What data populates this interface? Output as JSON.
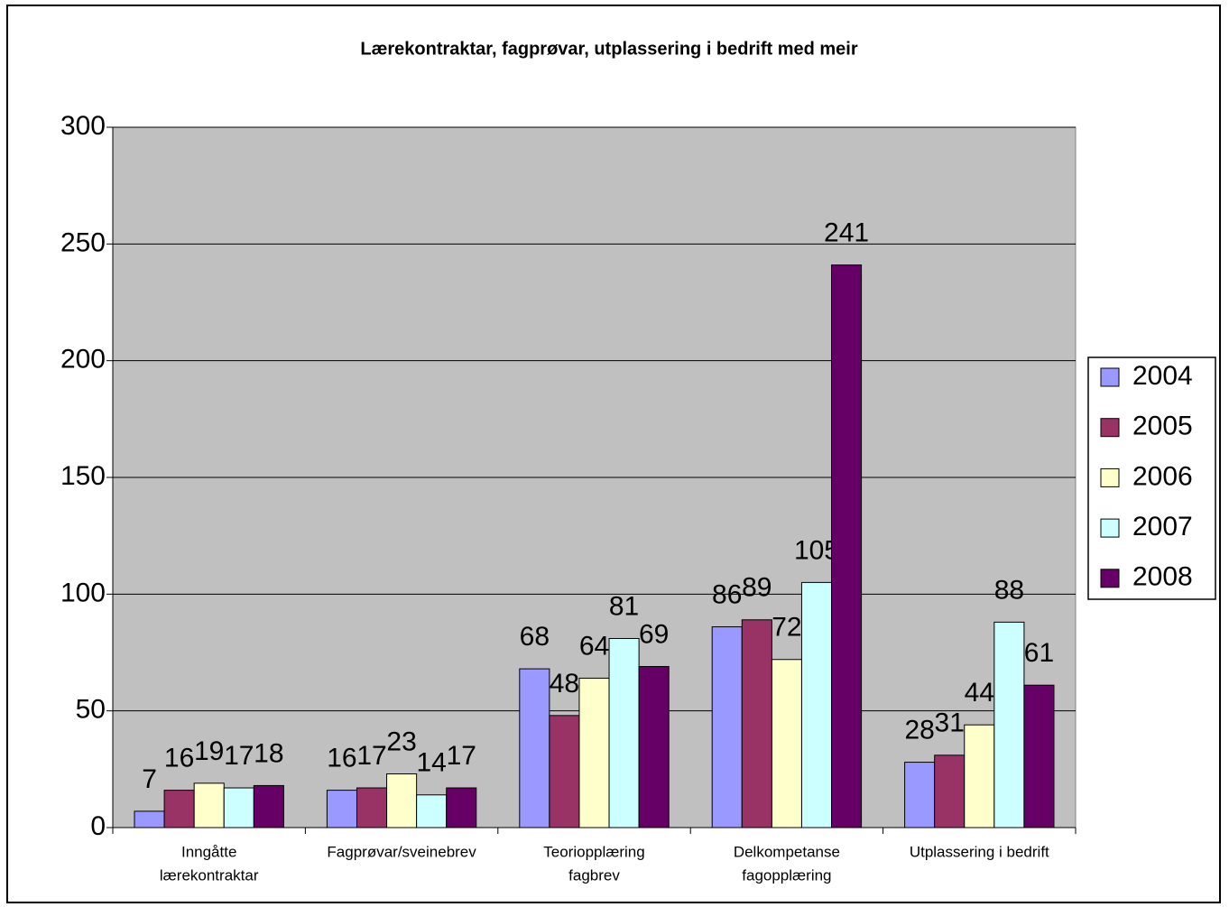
{
  "chart_data": {
    "type": "bar",
    "title": "Lærekontraktar, fagprøvar, utplassering i bedrift med meir",
    "categories": [
      [
        "Inngåtte",
        "lærekontraktar"
      ],
      [
        "Fagprøvar/sveinebrev"
      ],
      [
        "Teoriopplæring",
        "fagbrev"
      ],
      [
        "Delkompetanse",
        "fagopplæring"
      ],
      [
        "Utplassering i bedrift"
      ]
    ],
    "series": [
      {
        "name": "2004",
        "color": "#9999ff",
        "values": [
          7,
          16,
          68,
          86,
          28
        ]
      },
      {
        "name": "2005",
        "color": "#993366",
        "values": [
          16,
          17,
          48,
          89,
          31
        ]
      },
      {
        "name": "2006",
        "color": "#ffffcc",
        "values": [
          19,
          23,
          64,
          72,
          44
        ]
      },
      {
        "name": "2007",
        "color": "#ccffff",
        "values": [
          17,
          14,
          81,
          105,
          88
        ]
      },
      {
        "name": "2008",
        "color": "#660066",
        "values": [
          18,
          17,
          69,
          241,
          61
        ]
      }
    ],
    "ylim": [
      0,
      300
    ],
    "yticks": [
      0,
      50,
      100,
      150,
      200,
      250,
      300
    ],
    "grid": true,
    "legend": "right",
    "plot_background": "#c0c0c0"
  }
}
